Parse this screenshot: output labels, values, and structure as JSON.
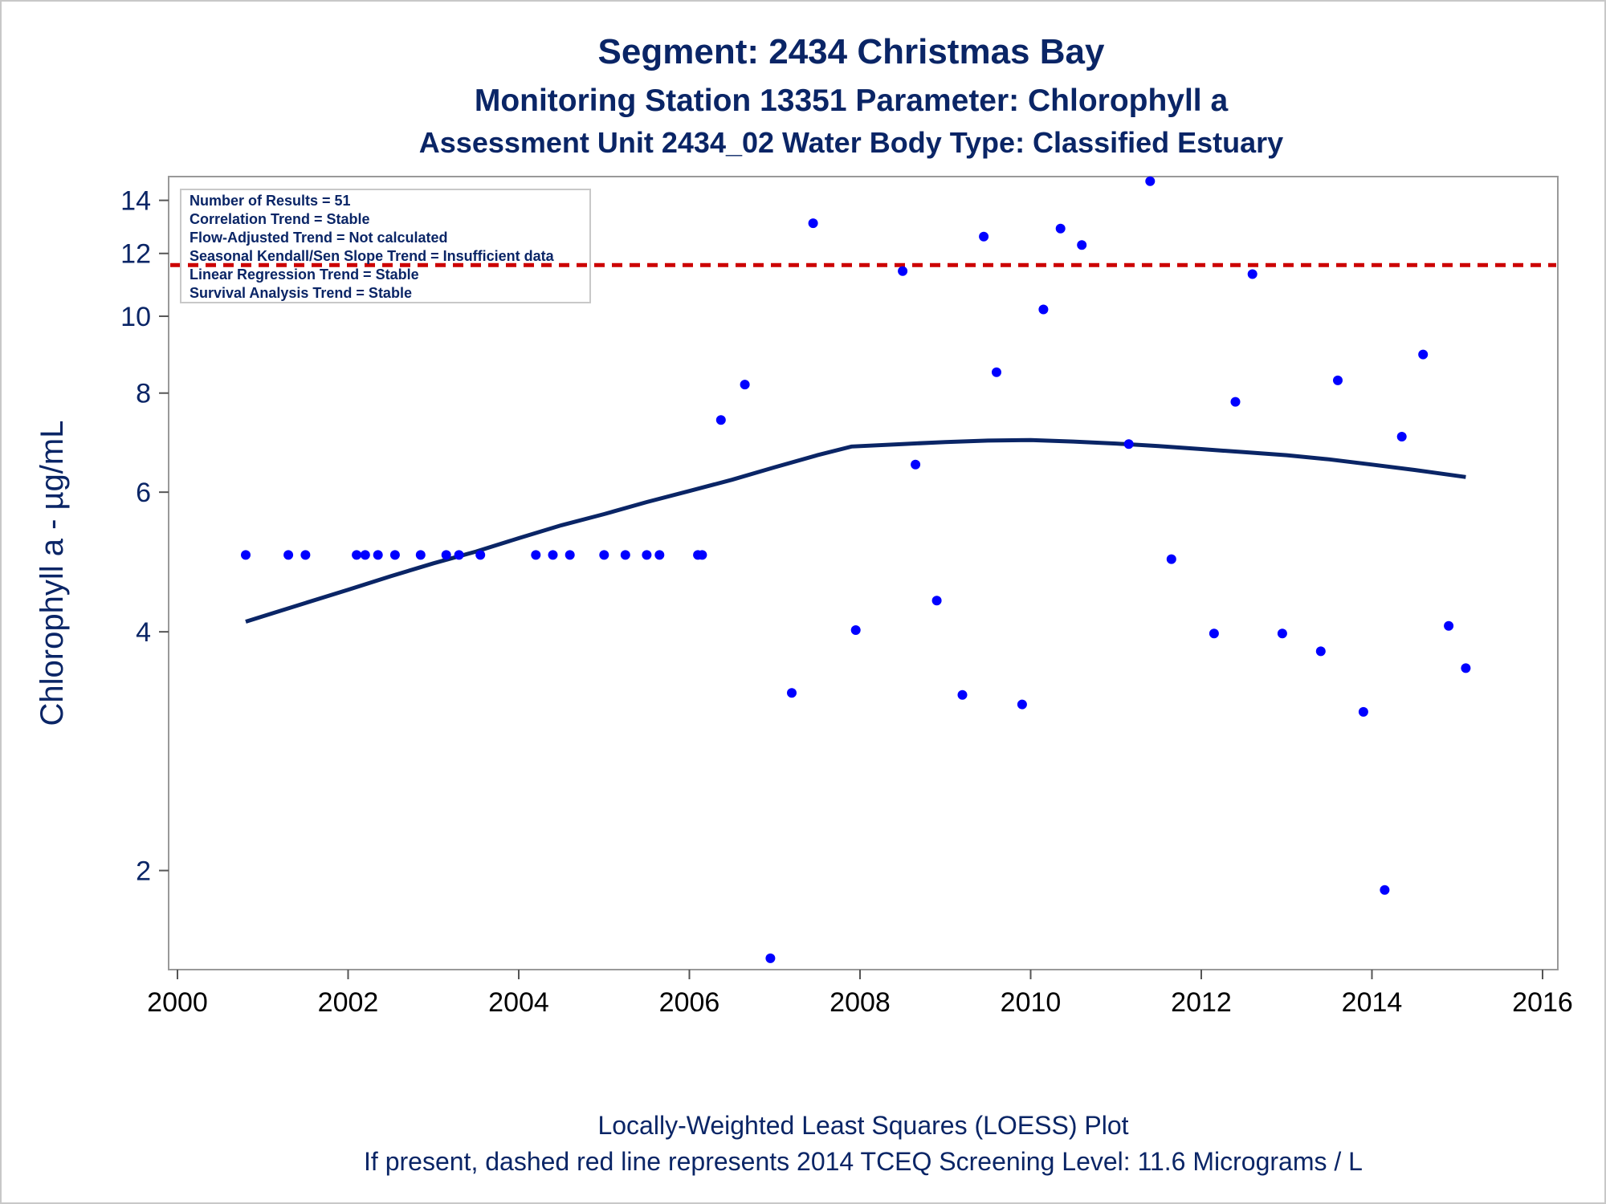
{
  "titles": {
    "line1": "Segment: 2434  Christmas Bay",
    "line2": "Monitoring Station 13351 Parameter: Chlorophyll a",
    "line3": "Assessment Unit 2434_02   Water Body Type: Classified Estuary"
  },
  "footnotes": {
    "line1": "Locally-Weighted Least Squares (LOESS) Plot",
    "line2": "If present, dashed red line represents 2014 TCEQ Screening Level: 11.6 Micrograms / L"
  },
  "stats_box": [
    "Number of Results = 51",
    "Correlation Trend = Stable",
    "Flow-Adjusted Trend = Not calculated",
    "Seasonal Kendall/Sen Slope Trend = Insufficient data",
    "Linear Regression Trend = Stable",
    "Survival Analysis Trend = Stable"
  ],
  "colors": {
    "points": "#0000ff",
    "loess": "#0a2566",
    "screening": "#cc0000",
    "text": "#0a2566",
    "frame": "#999999"
  },
  "chart_data": {
    "type": "scatter",
    "title": "Segment: 2434  Christmas Bay",
    "xlabel": "",
    "ylabel": "Chlorophyll a -  µg/mL",
    "xlim": [
      2000,
      2016
    ],
    "ylim": [
      1.5,
      15
    ],
    "y_scale": "log",
    "x_ticks": [
      2000,
      2002,
      2004,
      2006,
      2008,
      2010,
      2012,
      2014,
      2016
    ],
    "y_ticks": [
      2,
      4,
      6,
      8,
      10,
      12,
      14
    ],
    "grid": false,
    "screening_level": 11.6,
    "points": {
      "x": [
        2000.8,
        2001.3,
        2001.5,
        2002.1,
        2002.2,
        2002.35,
        2002.55,
        2002.85,
        2003.15,
        2003.3,
        2003.55,
        2004.2,
        2004.4,
        2004.6,
        2005.0,
        2005.25,
        2005.5,
        2005.65,
        2006.1,
        2006.15,
        2006.37,
        2006.65,
        2006.95,
        2007.2,
        2007.45,
        2007.95,
        2008.5,
        2008.65,
        2008.9,
        2009.2,
        2009.45,
        2009.6,
        2009.9,
        2010.15,
        2010.35,
        2010.6,
        2011.15,
        2011.4,
        2011.65,
        2012.15,
        2012.4,
        2012.6,
        2012.95,
        2013.4,
        2013.6,
        2013.9,
        2014.15,
        2014.35,
        2014.6,
        2014.9,
        2015.1
      ],
      "y": [
        5.0,
        5.0,
        5.0,
        5.0,
        5.0,
        5.0,
        5.0,
        5.0,
        5.0,
        5.0,
        5.0,
        5.0,
        5.0,
        5.0,
        5.0,
        5.0,
        5.0,
        5.0,
        5.0,
        5.0,
        7.4,
        8.2,
        1.55,
        3.35,
        13.1,
        4.02,
        11.4,
        6.5,
        4.38,
        3.33,
        12.6,
        8.5,
        3.24,
        10.2,
        12.9,
        12.3,
        6.9,
        14.8,
        4.94,
        3.98,
        7.8,
        11.3,
        3.98,
        3.78,
        8.3,
        3.17,
        1.89,
        7.05,
        8.95,
        4.07,
        3.6
      ]
    },
    "loess": {
      "x": [
        2000.8,
        2001.5,
        2002.0,
        2002.5,
        2003.0,
        2003.5,
        2004.0,
        2004.5,
        2005.0,
        2005.5,
        2006.0,
        2006.5,
        2007.0,
        2007.5,
        2007.9,
        2008.5,
        2009.0,
        2009.5,
        2010.0,
        2010.5,
        2011.0,
        2011.5,
        2012.0,
        2012.5,
        2013.0,
        2013.5,
        2014.0,
        2014.5,
        2015.1
      ],
      "y": [
        4.12,
        4.35,
        4.52,
        4.7,
        4.88,
        5.05,
        5.25,
        5.45,
        5.63,
        5.83,
        6.02,
        6.22,
        6.45,
        6.68,
        6.85,
        6.9,
        6.94,
        6.97,
        6.98,
        6.95,
        6.91,
        6.86,
        6.8,
        6.74,
        6.68,
        6.6,
        6.5,
        6.4,
        6.27
      ]
    }
  }
}
